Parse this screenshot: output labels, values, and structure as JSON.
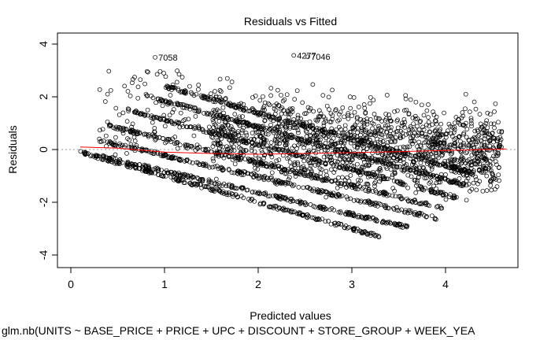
{
  "chart_data": {
    "type": "scatter",
    "title": "Residuals vs Fitted",
    "xlabel": "Predicted values",
    "ylabel": "Residuals",
    "subtitle": "glm.nb(UNITS ~ BASE_PRICE + PRICE + UPC + DISCOUNT + STORE_GROUP + WEEK_YEA",
    "xlim": [
      0,
      4.8
    ],
    "ylim": [
      -4.2,
      4.2
    ],
    "xticks": [
      "0",
      "1",
      "2",
      "3",
      "4"
    ],
    "yticks": [
      "-4",
      "-2",
      "0",
      "2",
      "4"
    ],
    "reference_line": {
      "y": 0,
      "style": "dotted",
      "color": "#999999"
    },
    "point_color": "#000000",
    "smooth_color": "#ff0000",
    "labeled_points": [
      {
        "label": "7058",
        "x": 0.9,
        "y": 3.5
      },
      {
        "label": "4277",
        "x": 2.38,
        "y": 3.57
      },
      {
        "label": "7046",
        "x": 2.53,
        "y": 3.52
      }
    ],
    "band_lines": [
      {
        "x": [
          0.1,
          3.3
        ],
        "y": [
          -0.1,
          -3.3
        ]
      },
      {
        "x": [
          0.25,
          3.6
        ],
        "y": [
          -0.2,
          -2.95
        ]
      },
      {
        "x": [
          0.3,
          3.9
        ],
        "y": [
          0.35,
          -2.6
        ]
      },
      {
        "x": [
          0.4,
          4.0
        ],
        "y": [
          0.9,
          -2.25
        ]
      },
      {
        "x": [
          0.6,
          4.1
        ],
        "y": [
          1.5,
          -1.8
        ]
      },
      {
        "x": [
          0.8,
          4.2
        ],
        "y": [
          2.05,
          -1.35
        ]
      },
      {
        "x": [
          1.0,
          4.3
        ],
        "y": [
          2.4,
          -0.9
        ]
      }
    ],
    "cloud": {
      "x_range": [
        1.5,
        4.6
      ],
      "y_center": 0.4,
      "y_spread": 2.6
    },
    "smooth_line": {
      "x": [
        0.1,
        0.5,
        1.0,
        1.5,
        2.0,
        2.5,
        3.0,
        3.5,
        4.0,
        4.4,
        4.65
      ],
      "y": [
        0.1,
        0.05,
        -0.1,
        -0.15,
        -0.18,
        -0.15,
        -0.12,
        -0.08,
        -0.04,
        0.0,
        0.02
      ]
    }
  }
}
